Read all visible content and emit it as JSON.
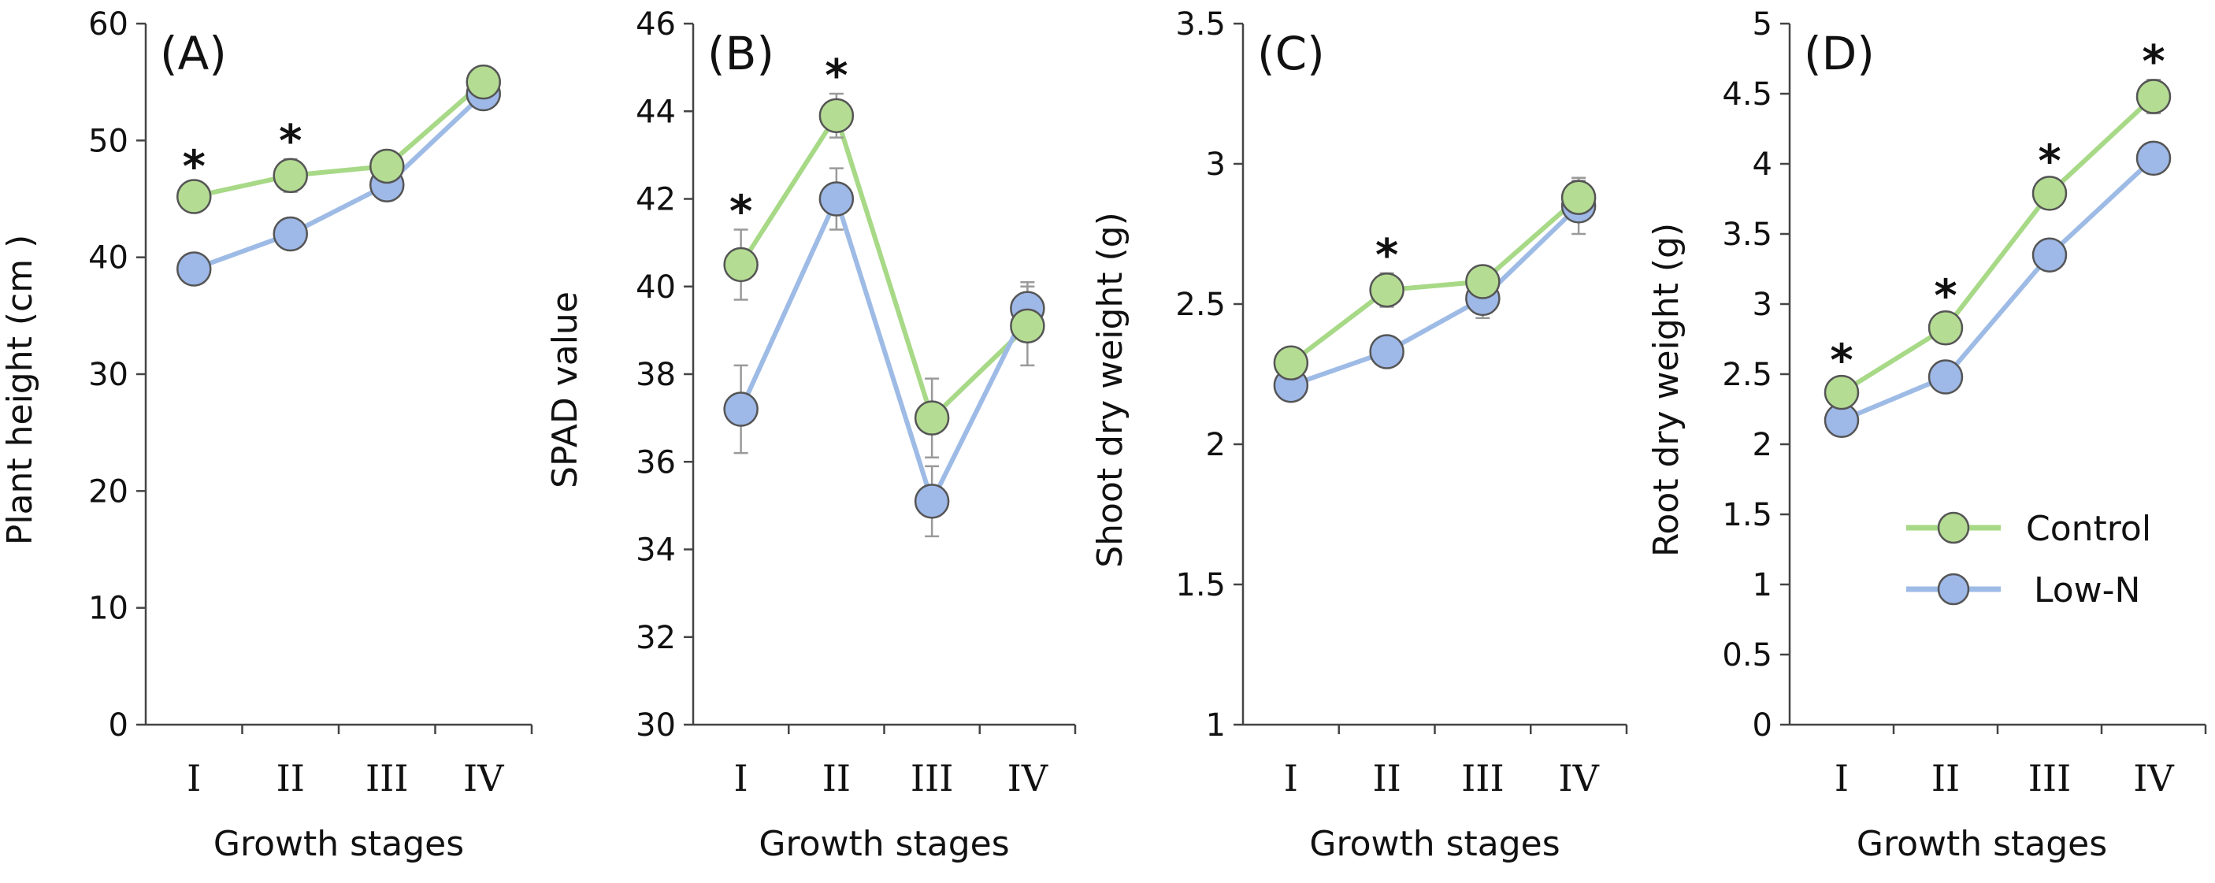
{
  "colors": {
    "control_line": "#A7D987",
    "control_fill": "#B5DC93",
    "lown_line": "#9EBBE6",
    "lown_fill": "#9EB8E8",
    "marker_stroke": "#555555",
    "error_bar": "#9A9A9A",
    "axis": "#444444"
  },
  "legend": {
    "control": "Control",
    "low_n": "Low-N"
  },
  "chart_data": [
    {
      "type": "line",
      "panel": "(A)",
      "xlabel": "Growth stages",
      "ylabel": "Plant height  (cm )",
      "categories": [
        "I",
        "II",
        "III",
        "IV"
      ],
      "ylim": [
        0,
        60
      ],
      "yticks": [
        0,
        10,
        20,
        30,
        40,
        50,
        60
      ],
      "ytick_labels": [
        "0",
        "10",
        "20",
        "30",
        "40",
        "50",
        "60"
      ],
      "series": [
        {
          "name": "Control",
          "values": [
            45.2,
            47.0,
            47.8,
            55.0
          ],
          "errors": [
            1.0,
            1.4,
            1.0,
            0.8
          ]
        },
        {
          "name": "Low-N",
          "values": [
            39.0,
            42.0,
            46.2,
            54.0
          ],
          "errors": [
            1.0,
            1.2,
            1.0,
            0.8
          ]
        }
      ],
      "significance": [
        "*",
        "*",
        "",
        ""
      ]
    },
    {
      "type": "line",
      "panel": "(B)",
      "xlabel": "Growth stages",
      "ylabel": "SPAD value",
      "categories": [
        "I",
        "II",
        "III",
        "IV"
      ],
      "ylim": [
        30,
        46
      ],
      "yticks": [
        30,
        32,
        34,
        36,
        38,
        40,
        42,
        44,
        46
      ],
      "ytick_labels": [
        "30",
        "32",
        "34",
        "36",
        "38",
        "40",
        "42",
        "44",
        "46"
      ],
      "series": [
        {
          "name": "Control",
          "values": [
            40.5,
            43.9,
            37.0,
            39.1
          ],
          "errors": [
            0.8,
            0.5,
            0.9,
            0.9
          ]
        },
        {
          "name": "Low-N",
          "values": [
            37.2,
            42.0,
            35.1,
            39.5
          ],
          "errors": [
            1.0,
            0.7,
            0.8,
            0.6
          ]
        }
      ],
      "significance": [
        "*",
        "*",
        "",
        ""
      ]
    },
    {
      "type": "line",
      "panel": "(C)",
      "xlabel": "Growth stages",
      "ylabel": "Shoot dry weight (g)",
      "categories": [
        "I",
        "II",
        "III",
        "IV"
      ],
      "ylim": [
        1,
        3.5
      ],
      "yticks": [
        1,
        1.5,
        2,
        2.5,
        3,
        3.5
      ],
      "ytick_labels": [
        "1",
        "1.5",
        "2",
        "2.5",
        "3",
        "3.5"
      ],
      "series": [
        {
          "name": "Control",
          "values": [
            2.29,
            2.55,
            2.58,
            2.88
          ],
          "errors": [
            0.05,
            0.06,
            0.05,
            0.06
          ]
        },
        {
          "name": "Low-N",
          "values": [
            2.21,
            2.33,
            2.52,
            2.85
          ],
          "errors": [
            0.05,
            0.05,
            0.07,
            0.1
          ]
        }
      ],
      "significance": [
        "",
        "*",
        "",
        ""
      ]
    },
    {
      "type": "line",
      "panel": "(D)",
      "xlabel": "Growth stages",
      "ylabel": "Root dry weight (g)",
      "categories": [
        "I",
        "II",
        "III",
        "IV"
      ],
      "ylim": [
        0,
        5
      ],
      "yticks": [
        0,
        0.5,
        1,
        1.5,
        2,
        2.5,
        3,
        3.5,
        4,
        4.5,
        5
      ],
      "ytick_labels": [
        "0",
        "0.5",
        "1",
        "1.5",
        "2",
        "2.5",
        "3",
        "3.5",
        "4",
        "4.5",
        "5"
      ],
      "series": [
        {
          "name": "Control",
          "values": [
            2.37,
            2.83,
            3.79,
            4.48
          ],
          "errors": [
            0.1,
            0.1,
            0.1,
            0.12
          ]
        },
        {
          "name": "Low-N",
          "values": [
            2.17,
            2.48,
            3.35,
            4.04
          ],
          "errors": [
            0.08,
            0.08,
            0.08,
            0.08
          ]
        }
      ],
      "significance": [
        "*",
        "*",
        "*",
        "*"
      ]
    }
  ]
}
